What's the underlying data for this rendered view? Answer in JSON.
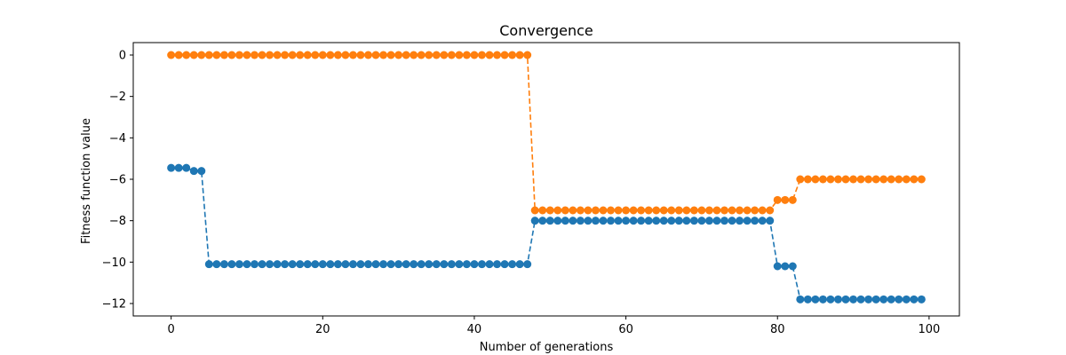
{
  "chart_data": {
    "type": "line",
    "title": "Convergence",
    "xlabel": "Number of generations",
    "ylabel": "Fitness function value",
    "xlim": [
      -5,
      104
    ],
    "ylim": [
      -12.6,
      0.6
    ],
    "xticks": [
      0,
      20,
      40,
      60,
      80,
      100
    ],
    "xtick_labels": [
      "0",
      "20",
      "40",
      "60",
      "80",
      "100"
    ],
    "yticks": [
      0,
      -2,
      -4,
      -6,
      -8,
      -10,
      -12
    ],
    "ytick_labels": [
      "0",
      "−2",
      "−4",
      "−6",
      "−8",
      "−10",
      "−12"
    ],
    "grid": false,
    "line_style": "dashed",
    "marker": "circle",
    "series": [
      {
        "color": "#1f77b4",
        "segments": [
          {
            "from": 0,
            "to": 2,
            "value": -5.45
          },
          {
            "from": 3,
            "to": 4,
            "value": -5.6
          },
          {
            "from": 5,
            "to": 47,
            "value": -10.1
          },
          {
            "from": 48,
            "to": 79,
            "value": -8.0
          },
          {
            "from": 80,
            "to": 82,
            "value": -10.2
          },
          {
            "from": 83,
            "to": 99,
            "value": -11.8
          }
        ]
      },
      {
        "color": "#ff7f0e",
        "segments": [
          {
            "from": 0,
            "to": 47,
            "value": 0.0
          },
          {
            "from": 48,
            "to": 79,
            "value": -7.5
          },
          {
            "from": 80,
            "to": 82,
            "value": -7.0
          },
          {
            "from": 83,
            "to": 99,
            "value": -6.0
          }
        ]
      }
    ]
  }
}
